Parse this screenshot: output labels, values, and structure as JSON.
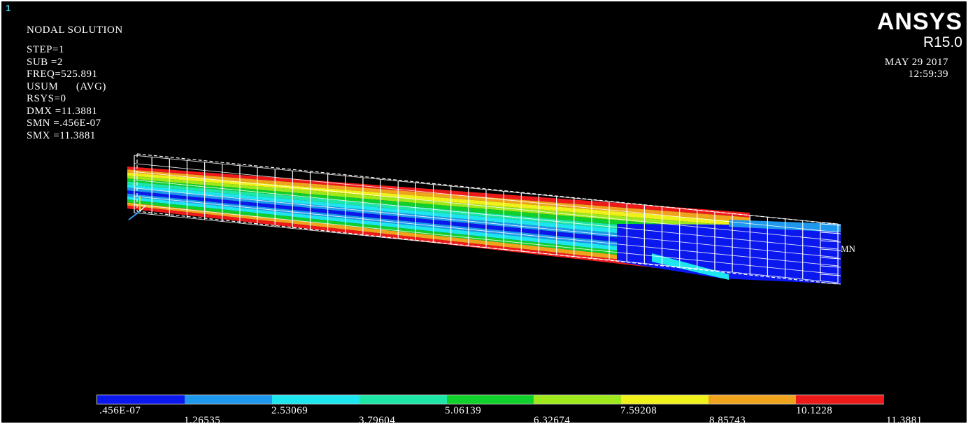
{
  "window": {
    "number": "1"
  },
  "plot": {
    "title": "NODAL SOLUTION",
    "params": [
      "STEP=1",
      "SUB =2",
      "FREQ=525.891",
      "USUM      (AVG)",
      "RSYS=0",
      "DMX =11.3881",
      "SMN =.456E-07",
      "SMX =11.3881"
    ],
    "min_marker": "MN"
  },
  "brand": {
    "name": "ANSYS",
    "version": "R15.0",
    "date": "MAY 29 2017",
    "time": "12:59:39"
  },
  "legend": {
    "colors": [
      "#0a18ee",
      "#1e98ec",
      "#1ee6ee",
      "#1ee6a6",
      "#10d02c",
      "#9ee81c",
      "#f0f01a",
      "#f0a41e",
      "#ee1a1a"
    ],
    "labels_top": [
      ".456E-07",
      "2.53069",
      "5.06139",
      "7.59208",
      "10.1228"
    ],
    "labels_bottom": [
      "1.26535",
      "3.79604",
      "6.32674",
      "8.85743",
      "11.3881"
    ]
  },
  "beam": {
    "deformed_band_colors": [
      "#ee1a1a",
      "#f0a41e",
      "#f0f01a",
      "#9ee81c",
      "#10d02c",
      "#1ee6a6",
      "#1ee6ee",
      "#1e98ec",
      "#0a18ee",
      "#1e98ec",
      "#1ee6ee",
      "#10d02c",
      "#f0a41e",
      "#ee1a1a"
    ]
  }
}
